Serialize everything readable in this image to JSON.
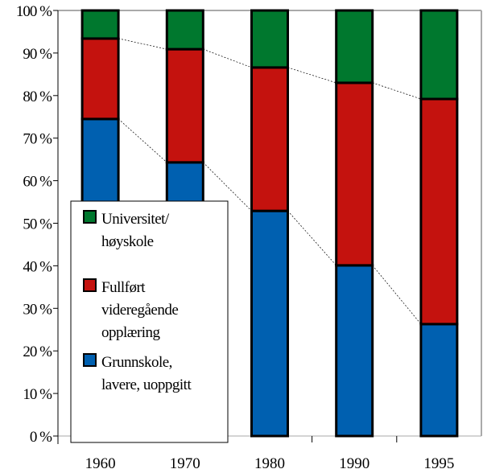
{
  "chart_data": {
    "type": "bar",
    "stacked": true,
    "categories": [
      "1960",
      "1970",
      "1980",
      "1990",
      "1995"
    ],
    "ylim": [
      0,
      100
    ],
    "yticks": [
      "0 %",
      "10 %",
      "20 %",
      "30 %",
      "40 %",
      "50 %",
      "60 %",
      "70 %",
      "80 %",
      "90 %",
      "100 %"
    ],
    "series": [
      {
        "name": "Grunnskole, lavere, uoppgitt",
        "color": "#0060b0",
        "values": [
          74.5,
          64.3,
          52.9,
          40.1,
          26.3
        ]
      },
      {
        "name": "Fullført videregående opplæring",
        "color": "#c4120e",
        "values": [
          18.9,
          26.6,
          33.7,
          42.9,
          52.9
        ]
      },
      {
        "name": "Universitet/ høyskole",
        "color": "#00782e",
        "values": [
          6.6,
          9.1,
          13.4,
          17.0,
          20.8
        ]
      }
    ],
    "legend": {
      "placement": "bottom-left",
      "items": [
        {
          "lines": [
            "Universitet/",
            "høyskole"
          ],
          "color": "#00782e"
        },
        {
          "lines": [
            "Fullført",
            "videregående",
            "opplæring"
          ],
          "color": "#c4120e"
        },
        {
          "lines": [
            "Grunnskole,",
            "lavere, uoppgitt"
          ],
          "color": "#0060b0"
        }
      ]
    },
    "series_lines": "dotted connectors between stack boundaries"
  }
}
